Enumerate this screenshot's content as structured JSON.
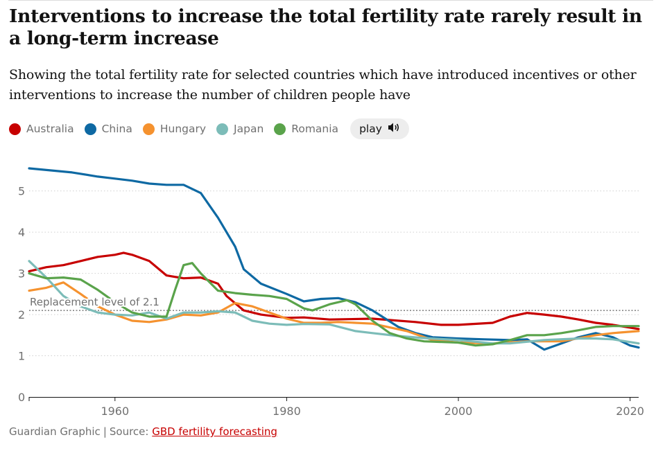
{
  "header": {
    "title": "Interventions to increase the total fertility rate rarely result in a long-term increase",
    "subtitle": "Showing the total fertility rate for selected countries which have introduced incentives or other interventions to increase the number of children people have"
  },
  "legend": {
    "items": [
      {
        "label": "Australia",
        "color": "#c70000"
      },
      {
        "label": "China",
        "color": "#0e69a3"
      },
      {
        "label": "Hungary",
        "color": "#f5922f"
      },
      {
        "label": "Japan",
        "color": "#7cbcb8"
      },
      {
        "label": "Romania",
        "color": "#5aa34b"
      }
    ],
    "play_label": "play",
    "play_icon": "speaker-icon"
  },
  "footer": {
    "credit": "Guardian Graphic",
    "separator": "|",
    "source_prefix": "Source:",
    "source_link": "GBD fertility forecasting"
  },
  "chart_data": {
    "type": "line",
    "title": "Interventions to increase the total fertility rate rarely result in a long-term increase",
    "xlabel": "",
    "ylabel": "",
    "xlim": [
      1950,
      2021
    ],
    "ylim": [
      0,
      5.6
    ],
    "x_ticks": [
      1960,
      1980,
      2000,
      2020
    ],
    "y_ticks": [
      0,
      1,
      2,
      3,
      4,
      5
    ],
    "grid": "horizontal-dotted",
    "legend_position": "top-left",
    "annotation": {
      "label": "Replacement level of 2.1",
      "y": 2.1
    },
    "series": [
      {
        "name": "Australia",
        "color": "#c70000",
        "points": [
          [
            1950,
            3.05
          ],
          [
            1952,
            3.15
          ],
          [
            1954,
            3.2
          ],
          [
            1956,
            3.3
          ],
          [
            1958,
            3.4
          ],
          [
            1960,
            3.45
          ],
          [
            1961,
            3.5
          ],
          [
            1962,
            3.45
          ],
          [
            1964,
            3.3
          ],
          [
            1966,
            2.95
          ],
          [
            1968,
            2.88
          ],
          [
            1970,
            2.9
          ],
          [
            1972,
            2.75
          ],
          [
            1973,
            2.45
          ],
          [
            1975,
            2.1
          ],
          [
            1977,
            2.0
          ],
          [
            1980,
            1.92
          ],
          [
            1982,
            1.93
          ],
          [
            1985,
            1.88
          ],
          [
            1990,
            1.9
          ],
          [
            1995,
            1.82
          ],
          [
            1998,
            1.75
          ],
          [
            2000,
            1.75
          ],
          [
            2004,
            1.8
          ],
          [
            2006,
            1.95
          ],
          [
            2008,
            2.04
          ],
          [
            2010,
            2.0
          ],
          [
            2012,
            1.95
          ],
          [
            2014,
            1.88
          ],
          [
            2016,
            1.8
          ],
          [
            2018,
            1.75
          ],
          [
            2021,
            1.65
          ]
        ]
      },
      {
        "name": "China",
        "color": "#0e69a3",
        "points": [
          [
            1950,
            5.55
          ],
          [
            1955,
            5.45
          ],
          [
            1958,
            5.35
          ],
          [
            1960,
            5.3
          ],
          [
            1962,
            5.25
          ],
          [
            1964,
            5.18
          ],
          [
            1966,
            5.15
          ],
          [
            1968,
            5.15
          ],
          [
            1970,
            4.95
          ],
          [
            1972,
            4.35
          ],
          [
            1974,
            3.65
          ],
          [
            1975,
            3.1
          ],
          [
            1977,
            2.75
          ],
          [
            1980,
            2.5
          ],
          [
            1982,
            2.32
          ],
          [
            1984,
            2.38
          ],
          [
            1986,
            2.4
          ],
          [
            1988,
            2.3
          ],
          [
            1990,
            2.1
          ],
          [
            1993,
            1.7
          ],
          [
            1995,
            1.55
          ],
          [
            1997,
            1.45
          ],
          [
            2000,
            1.42
          ],
          [
            2003,
            1.4
          ],
          [
            2006,
            1.38
          ],
          [
            2008,
            1.4
          ],
          [
            2010,
            1.15
          ],
          [
            2012,
            1.3
          ],
          [
            2014,
            1.45
          ],
          [
            2016,
            1.55
          ],
          [
            2018,
            1.45
          ],
          [
            2020,
            1.25
          ],
          [
            2021,
            1.2
          ]
        ]
      },
      {
        "name": "Hungary",
        "color": "#f5922f",
        "points": [
          [
            1950,
            2.58
          ],
          [
            1952,
            2.65
          ],
          [
            1954,
            2.78
          ],
          [
            1956,
            2.5
          ],
          [
            1958,
            2.2
          ],
          [
            1960,
            2.0
          ],
          [
            1962,
            1.85
          ],
          [
            1964,
            1.82
          ],
          [
            1966,
            1.88
          ],
          [
            1968,
            2.0
          ],
          [
            1970,
            1.98
          ],
          [
            1972,
            2.05
          ],
          [
            1974,
            2.28
          ],
          [
            1976,
            2.2
          ],
          [
            1978,
            2.05
          ],
          [
            1980,
            1.9
          ],
          [
            1982,
            1.8
          ],
          [
            1984,
            1.8
          ],
          [
            1986,
            1.82
          ],
          [
            1988,
            1.8
          ],
          [
            1990,
            1.78
          ],
          [
            1994,
            1.6
          ],
          [
            1997,
            1.38
          ],
          [
            2000,
            1.32
          ],
          [
            2004,
            1.3
          ],
          [
            2008,
            1.35
          ],
          [
            2012,
            1.35
          ],
          [
            2016,
            1.5
          ],
          [
            2018,
            1.55
          ],
          [
            2021,
            1.6
          ]
        ]
      },
      {
        "name": "Japan",
        "color": "#7cbcb8",
        "points": [
          [
            1950,
            3.3
          ],
          [
            1952,
            2.9
          ],
          [
            1954,
            2.45
          ],
          [
            1956,
            2.2
          ],
          [
            1958,
            2.05
          ],
          [
            1960,
            2.0
          ],
          [
            1962,
            1.98
          ],
          [
            1964,
            2.05
          ],
          [
            1966,
            1.9
          ],
          [
            1968,
            2.05
          ],
          [
            1970,
            2.05
          ],
          [
            1972,
            2.08
          ],
          [
            1974,
            2.05
          ],
          [
            1976,
            1.85
          ],
          [
            1978,
            1.78
          ],
          [
            1980,
            1.75
          ],
          [
            1982,
            1.77
          ],
          [
            1985,
            1.76
          ],
          [
            1988,
            1.6
          ],
          [
            1990,
            1.55
          ],
          [
            1993,
            1.48
          ],
          [
            1996,
            1.43
          ],
          [
            2000,
            1.38
          ],
          [
            2004,
            1.3
          ],
          [
            2006,
            1.3
          ],
          [
            2010,
            1.38
          ],
          [
            2014,
            1.42
          ],
          [
            2016,
            1.42
          ],
          [
            2018,
            1.4
          ],
          [
            2021,
            1.3
          ]
        ]
      },
      {
        "name": "Romania",
        "color": "#5aa34b",
        "points": [
          [
            1950,
            3.0
          ],
          [
            1952,
            2.88
          ],
          [
            1954,
            2.9
          ],
          [
            1956,
            2.85
          ],
          [
            1958,
            2.6
          ],
          [
            1960,
            2.3
          ],
          [
            1962,
            2.05
          ],
          [
            1964,
            1.95
          ],
          [
            1966,
            1.95
          ],
          [
            1967,
            2.6
          ],
          [
            1968,
            3.2
          ],
          [
            1969,
            3.25
          ],
          [
            1970,
            3.0
          ],
          [
            1972,
            2.58
          ],
          [
            1974,
            2.52
          ],
          [
            1976,
            2.48
          ],
          [
            1978,
            2.45
          ],
          [
            1980,
            2.38
          ],
          [
            1982,
            2.15
          ],
          [
            1983,
            2.1
          ],
          [
            1985,
            2.25
          ],
          [
            1987,
            2.35
          ],
          [
            1988,
            2.25
          ],
          [
            1990,
            1.85
          ],
          [
            1992,
            1.55
          ],
          [
            1994,
            1.42
          ],
          [
            1996,
            1.35
          ],
          [
            2000,
            1.32
          ],
          [
            2002,
            1.25
          ],
          [
            2004,
            1.28
          ],
          [
            2006,
            1.38
          ],
          [
            2008,
            1.5
          ],
          [
            2010,
            1.5
          ],
          [
            2012,
            1.55
          ],
          [
            2014,
            1.62
          ],
          [
            2016,
            1.7
          ],
          [
            2018,
            1.72
          ],
          [
            2021,
            1.72
          ]
        ]
      }
    ]
  }
}
